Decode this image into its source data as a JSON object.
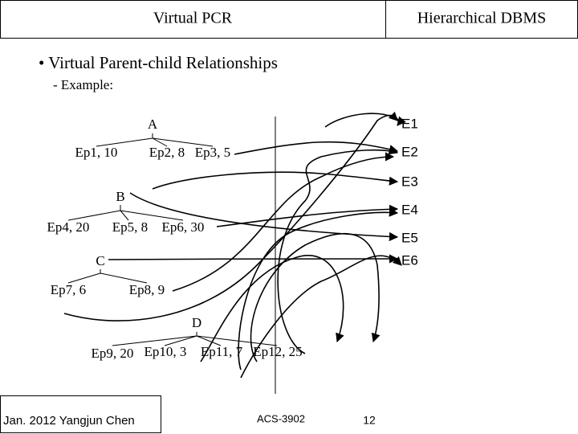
{
  "header": {
    "left": "Virtual PCR",
    "right": "Hierarchical DBMS"
  },
  "bullet": "• Virtual Parent-child Relationships",
  "sub_bullet": "- Example:",
  "tree": {
    "nodes": [
      {
        "label": "A",
        "children": [
          "Ep1, 10",
          "Ep2, 8",
          "Ep3, 5"
        ]
      },
      {
        "label": "B",
        "children": [
          "Ep4, 20",
          "Ep5, 8",
          "Ep6, 30"
        ]
      },
      {
        "label": "C",
        "children": [
          "Ep7, 6",
          "Ep8, 9"
        ]
      },
      {
        "label": "D",
        "children": [
          "Ep9, 20",
          "Ep10, 3",
          "Ep11, 7",
          "Ep12, 25"
        ]
      }
    ]
  },
  "targets": [
    "E1",
    "E2",
    "E3",
    "E4",
    "E5",
    "E6"
  ],
  "footer": {
    "author": "Jan.  2012  Yangjun Chen",
    "course": "ACS-3902",
    "page": "12"
  }
}
